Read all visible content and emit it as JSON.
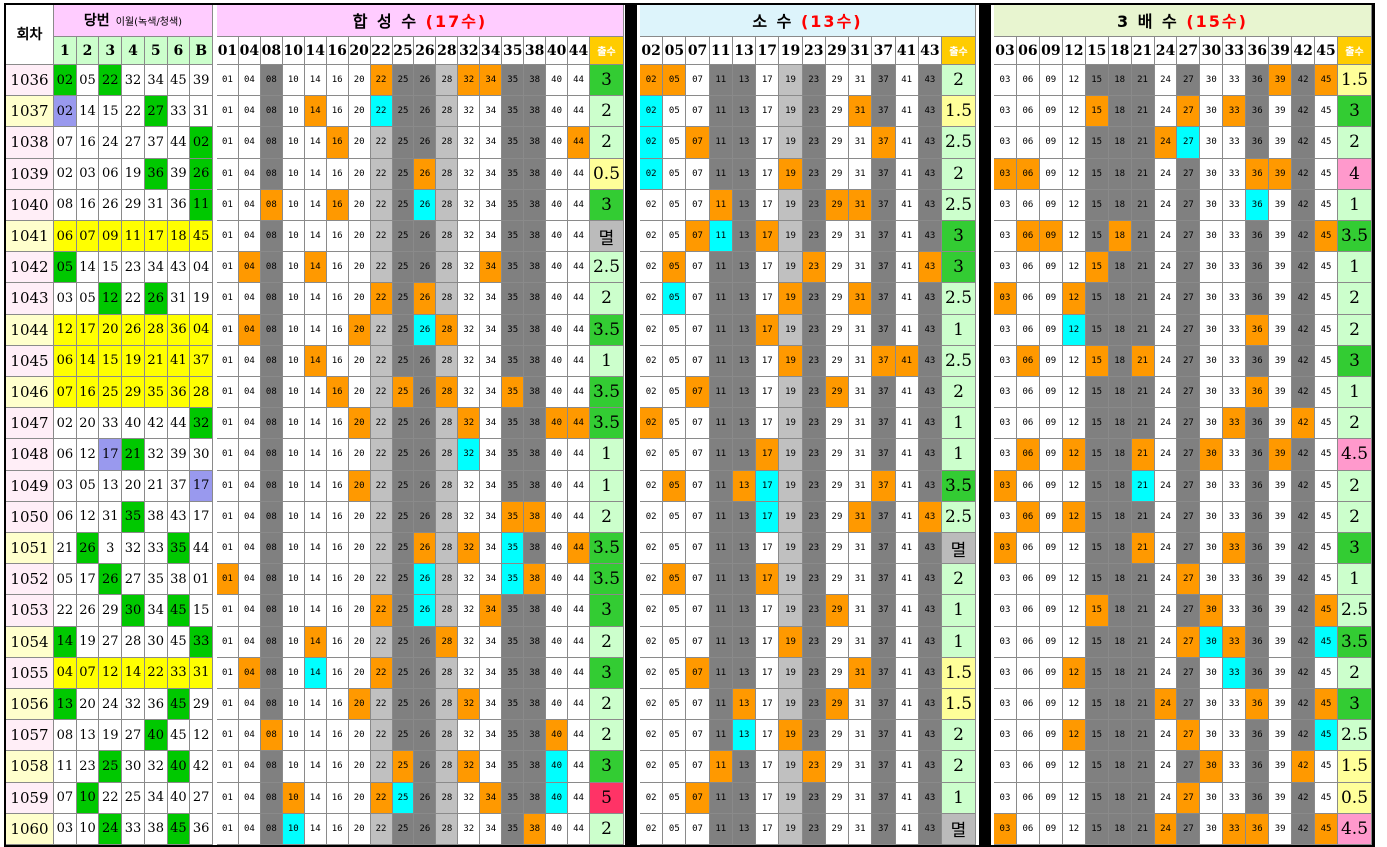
{
  "colors": {
    "green": "#00c800",
    "yellow": "#ffff00",
    "purple": "#9999ee",
    "orange": "#ff9900",
    "cyan": "#00ffff",
    "dark_gray": "#808080",
    "light_gray": "#c0c0c0",
    "title_red": "#ff0000",
    "row_pink": "#ffeef7",
    "row_lightyellow": "#ffffcc",
    "header_green": "#ccffcc",
    "header_pink": "#ffccff",
    "header_blue": "#ddf4fb",
    "header_green2": "#e8f5d0",
    "score_green": "#33cc33",
    "score_yellow": "#ffff99",
    "score_pink": "#ff99cc",
    "score_magenta": "#ff3366",
    "score_gray": "#bbbbbb",
    "score_lightgreen": "#ccffcc",
    "chul_header": "#ffcc00"
  },
  "header": {
    "round_label": "회차",
    "draw_label": "당번",
    "draw_note": "이월(녹색/청색)",
    "draw_columns": [
      "1",
      "2",
      "3",
      "4",
      "5",
      "6",
      "B"
    ],
    "chul_label": "출수"
  },
  "sections": [
    {
      "title": "합 성 수",
      "count": "(17수)",
      "numbers": [
        "01",
        "04",
        "08",
        "10",
        "14",
        "16",
        "20",
        "22",
        "25",
        "26",
        "28",
        "32",
        "34",
        "35",
        "38",
        "40",
        "44"
      ],
      "gray_pattern": [
        "w",
        "w",
        "d",
        "w",
        "w",
        "w",
        "w",
        "l",
        "d",
        "d",
        "l",
        "w",
        "w",
        "d",
        "d",
        "w",
        "w"
      ]
    },
    {
      "title": "소 수",
      "count": "(13수)",
      "numbers": [
        "02",
        "05",
        "07",
        "11",
        "13",
        "17",
        "19",
        "23",
        "29",
        "31",
        "37",
        "41",
        "43"
      ],
      "gray_pattern": [
        "w",
        "w",
        "w",
        "d",
        "d",
        "w",
        "l",
        "d",
        "w",
        "w",
        "d",
        "w",
        "d"
      ]
    },
    {
      "title": "3 배 수",
      "count": "(15수)",
      "numbers": [
        "03",
        "06",
        "09",
        "12",
        "15",
        "18",
        "21",
        "24",
        "27",
        "30",
        "33",
        "36",
        "39",
        "42",
        "45"
      ],
      "gray_pattern": [
        "w",
        "w",
        "w",
        "w",
        "d",
        "d",
        "d",
        "w",
        "d",
        "w",
        "w",
        "d",
        "w",
        "d",
        "w"
      ]
    }
  ],
  "rows": [
    {
      "round": "1036",
      "nums": [
        "02",
        "05",
        "22",
        "32",
        "34",
        "45",
        "39"
      ],
      "ncolor": [
        "g",
        "",
        "g",
        "",
        "",
        "",
        ""
      ],
      "scores": [
        "3",
        "2",
        "1.5"
      ]
    },
    {
      "round": "1037",
      "nums": [
        "02",
        "14",
        "15",
        "22",
        "27",
        "33",
        "31"
      ],
      "ncolor": [
        "p",
        "",
        "",
        "",
        "g",
        "",
        ""
      ],
      "scores": [
        "2",
        "1.5",
        "3"
      ]
    },
    {
      "round": "1038",
      "nums": [
        "07",
        "16",
        "24",
        "27",
        "37",
        "44",
        "02"
      ],
      "ncolor": [
        "",
        "",
        "",
        "",
        "",
        "",
        "g"
      ],
      "scores": [
        "2",
        "2.5",
        "2"
      ]
    },
    {
      "round": "1039",
      "nums": [
        "02",
        "03",
        "06",
        "19",
        "36",
        "39",
        "26"
      ],
      "ncolor": [
        "",
        "",
        "",
        "",
        "g",
        "",
        "g"
      ],
      "scores": [
        "0.5",
        "2",
        "4"
      ]
    },
    {
      "round": "1040",
      "nums": [
        "08",
        "16",
        "26",
        "29",
        "31",
        "36",
        "11"
      ],
      "ncolor": [
        "",
        "",
        "",
        "",
        "",
        "",
        "g"
      ],
      "scores": [
        "3",
        "2.5",
        "1"
      ]
    },
    {
      "round": "1041",
      "nums": [
        "06",
        "07",
        "09",
        "11",
        "17",
        "18",
        "45"
      ],
      "ncolor": [
        "y",
        "y",
        "y",
        "y",
        "y",
        "y",
        "y"
      ],
      "scores": [
        "멸",
        "3",
        "3.5"
      ]
    },
    {
      "round": "1042",
      "nums": [
        "05",
        "14",
        "15",
        "23",
        "34",
        "43",
        "04"
      ],
      "ncolor": [
        "g",
        "",
        "",
        "",
        "",
        "",
        ""
      ],
      "scores": [
        "2.5",
        "3",
        "1"
      ]
    },
    {
      "round": "1043",
      "nums": [
        "03",
        "05",
        "12",
        "22",
        "26",
        "31",
        "19"
      ],
      "ncolor": [
        "",
        "",
        "g",
        "",
        "g",
        "",
        ""
      ],
      "scores": [
        "2",
        "2.5",
        "2"
      ]
    },
    {
      "round": "1044",
      "nums": [
        "12",
        "17",
        "20",
        "26",
        "28",
        "36",
        "04"
      ],
      "ncolor": [
        "y",
        "y",
        "y",
        "y",
        "y",
        "y",
        "y"
      ],
      "scores": [
        "3.5",
        "1",
        "2"
      ]
    },
    {
      "round": "1045",
      "nums": [
        "06",
        "14",
        "15",
        "19",
        "21",
        "41",
        "37"
      ],
      "ncolor": [
        "y",
        "y",
        "y",
        "y",
        "y",
        "y",
        "y"
      ],
      "scores": [
        "1",
        "2.5",
        "3"
      ]
    },
    {
      "round": "1046",
      "nums": [
        "07",
        "16",
        "25",
        "29",
        "35",
        "36",
        "28"
      ],
      "ncolor": [
        "y",
        "y",
        "y",
        "y",
        "y",
        "y",
        "y"
      ],
      "scores": [
        "3.5",
        "2",
        "1"
      ]
    },
    {
      "round": "1047",
      "nums": [
        "02",
        "20",
        "33",
        "40",
        "42",
        "44",
        "32"
      ],
      "ncolor": [
        "",
        "",
        "",
        "",
        "",
        "",
        "g"
      ],
      "scores": [
        "3.5",
        "1",
        "2"
      ]
    },
    {
      "round": "1048",
      "nums": [
        "06",
        "12",
        "17",
        "21",
        "32",
        "39",
        "30"
      ],
      "ncolor": [
        "",
        "",
        "p",
        "g",
        "",
        "",
        ""
      ],
      "scores": [
        "1",
        "1",
        "4.5"
      ]
    },
    {
      "round": "1049",
      "nums": [
        "03",
        "05",
        "13",
        "20",
        "21",
        "37",
        "17"
      ],
      "ncolor": [
        "",
        "",
        "",
        "",
        "",
        "",
        "p"
      ],
      "scores": [
        "1",
        "3.5",
        "2"
      ]
    },
    {
      "round": "1050",
      "nums": [
        "06",
        "12",
        "31",
        "35",
        "38",
        "43",
        "17"
      ],
      "ncolor": [
        "",
        "",
        "",
        "g",
        "",
        "",
        ""
      ],
      "scores": [
        "2",
        "2.5",
        "2"
      ]
    },
    {
      "round": "1051",
      "nums": [
        "21",
        "26",
        "3",
        "32",
        "33",
        "35",
        "44"
      ],
      "ncolor": [
        "",
        "g",
        "",
        "",
        "",
        "g",
        ""
      ],
      "scores": [
        "3.5",
        "멸",
        "3"
      ]
    },
    {
      "round": "1052",
      "nums": [
        "05",
        "17",
        "26",
        "27",
        "35",
        "38",
        "01"
      ],
      "ncolor": [
        "",
        "",
        "g",
        "",
        "",
        "",
        ""
      ],
      "scores": [
        "3.5",
        "2",
        "1"
      ]
    },
    {
      "round": "1053",
      "nums": [
        "22",
        "26",
        "29",
        "30",
        "34",
        "45",
        "15"
      ],
      "ncolor": [
        "",
        "",
        "",
        "g",
        "",
        "g",
        ""
      ],
      "scores": [
        "3",
        "1",
        "2.5"
      ]
    },
    {
      "round": "1054",
      "nums": [
        "14",
        "19",
        "27",
        "28",
        "30",
        "45",
        "33"
      ],
      "ncolor": [
        "g",
        "",
        "",
        "",
        "",
        "",
        "g"
      ],
      "scores": [
        "2",
        "1",
        "3.5"
      ]
    },
    {
      "round": "1055",
      "nums": [
        "04",
        "07",
        "12",
        "14",
        "22",
        "33",
        "31"
      ],
      "ncolor": [
        "y",
        "y",
        "y",
        "y",
        "y",
        "y",
        "y"
      ],
      "scores": [
        "3",
        "1.5",
        "2"
      ]
    },
    {
      "round": "1056",
      "nums": [
        "13",
        "20",
        "24",
        "32",
        "36",
        "45",
        "29"
      ],
      "ncolor": [
        "g",
        "",
        "",
        "",
        "",
        "g",
        ""
      ],
      "scores": [
        "2",
        "1.5",
        "3"
      ]
    },
    {
      "round": "1057",
      "nums": [
        "08",
        "13",
        "19",
        "27",
        "40",
        "45",
        "12"
      ],
      "ncolor": [
        "",
        "",
        "",
        "",
        "g",
        "",
        ""
      ],
      "scores": [
        "2",
        "2",
        "2.5"
      ]
    },
    {
      "round": "1058",
      "nums": [
        "11",
        "23",
        "25",
        "30",
        "32",
        "40",
        "42"
      ],
      "ncolor": [
        "",
        "",
        "g",
        "",
        "",
        "g",
        ""
      ],
      "scores": [
        "3",
        "2",
        "1.5"
      ]
    },
    {
      "round": "1059",
      "nums": [
        "07",
        "10",
        "22",
        "25",
        "34",
        "40",
        "27"
      ],
      "ncolor": [
        "",
        "g",
        "",
        "",
        "",
        "",
        ""
      ],
      "scores": [
        "5",
        "1",
        "0.5"
      ]
    },
    {
      "round": "1060",
      "nums": [
        "03",
        "10",
        "24",
        "33",
        "38",
        "45",
        "36"
      ],
      "ncolor": [
        "",
        "",
        "g",
        "",
        "",
        "g",
        ""
      ],
      "scores": [
        "2",
        "멸",
        "4.5"
      ]
    }
  ],
  "row_style": [
    "p",
    "y",
    "p",
    "p",
    "p",
    "y",
    "p",
    "p",
    "y",
    "p",
    "y",
    "p",
    "p",
    "p",
    "p",
    "y",
    "p",
    "p",
    "y",
    "p",
    "y",
    "p",
    "y",
    "p",
    "y"
  ]
}
